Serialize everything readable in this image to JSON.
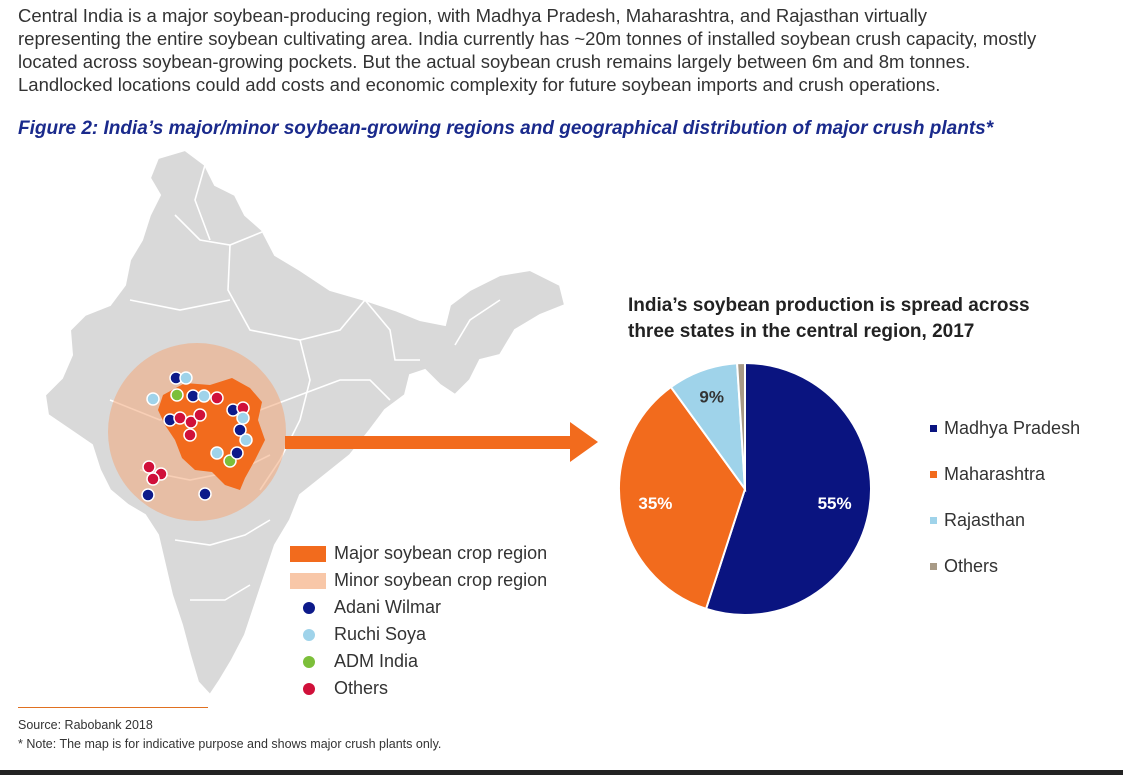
{
  "intro": {
    "line1": "Central India is a major soybean-producing region, with Madhya Pradesh, Maharashtra, and Rajasthan virtually",
    "line2": "representing the entire soybean cultivating area. India currently has ~20m tonnes of installed soybean crush capacity, mostly",
    "line3": "located across soybean-growing pockets. But the actual soybean crush remains largely between 6m and 8m tonnes.",
    "line4": "Landlocked locations could add costs and economic complexity for future soybean imports and crush operations."
  },
  "figure_title": "Figure 2: India’s major/minor soybean-growing regions and geographical distribution of major crush plants*",
  "map_legend": [
    {
      "label": "Major soybean crop region",
      "kind": "swatch",
      "color": "#f26b1d"
    },
    {
      "label": "Minor soybean crop region",
      "kind": "swatch",
      "color": "#f8c7a8"
    },
    {
      "label": "Adani Wilmar",
      "kind": "dot",
      "color": "#0d1a8a"
    },
    {
      "label": "Ruchi Soya",
      "kind": "dot",
      "color": "#9fd3ea"
    },
    {
      "label": "ADM India",
      "kind": "dot",
      "color": "#7cbf3a"
    },
    {
      "label": "Others",
      "kind": "dot",
      "color": "#d0103a"
    }
  ],
  "colors": {
    "map_land": "#d9d9d9",
    "arrow": "#f26b1d"
  },
  "chart_data": {
    "type": "pie",
    "title_line1": "India’s soybean production is spread across",
    "title_line2": "three states in the central region, 2017",
    "slices": [
      {
        "name": "Madhya Pradesh",
        "value": 55,
        "label": "55%",
        "color": "#0a1480"
      },
      {
        "name": "Maharashtra",
        "value": 35,
        "label": "35%",
        "color": "#f26b1d"
      },
      {
        "name": "Rajasthan",
        "value": 9,
        "label": "9%",
        "color": "#9fd3ea"
      },
      {
        "name": "Others",
        "value": 1,
        "label": "",
        "color": "#a89a86"
      }
    ],
    "legend_position": "right"
  },
  "source": "Source: Rabobank 2018",
  "note": "* Note: The map is for indicative purpose and shows major crush plants only."
}
